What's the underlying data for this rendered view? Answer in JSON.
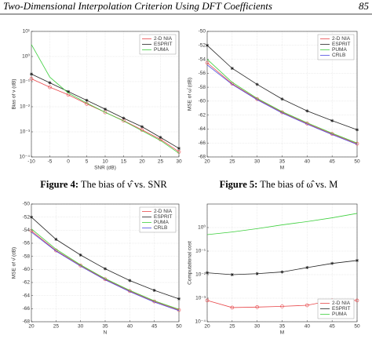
{
  "header": {
    "title": "Two-Dimensional Interpolation Criterion Using DFT Coefficients",
    "page": "85"
  },
  "captions": [
    {
      "label": "Figure 4:",
      "text": "The bias of ν̂ vs. SNR"
    },
    {
      "label": "Figure 5:",
      "text": "The bias of ω̂ vs. M"
    }
  ],
  "chart_data": [
    {
      "type": "line",
      "xlabel": "SNR (dB)",
      "ylabel": "Bias of ν (dB)",
      "log_y": true,
      "grid": true,
      "legend": "upper right",
      "x": [
        -10,
        -5,
        0,
        5,
        10,
        15,
        20,
        25,
        30
      ],
      "xlim": [
        -10,
        30
      ],
      "xticks": [
        -10,
        -5,
        0,
        5,
        10,
        15,
        20,
        25,
        30
      ],
      "ylim": [
        0.0001,
        10
      ],
      "yticks": [
        {
          "value": 0.0001,
          "label": "10⁻⁴"
        },
        {
          "value": 0.001,
          "label": "10⁻³"
        },
        {
          "value": 0.01,
          "label": "10⁻²"
        },
        {
          "value": 0.1,
          "label": "10⁻¹"
        },
        {
          "value": 1,
          "label": "10⁰"
        },
        {
          "value": 10,
          "label": "10¹"
        }
      ],
      "series": [
        {
          "name": "2-D NIA",
          "color": "#e8474a",
          "marker": "circle",
          "values": [
            0.13,
            0.06,
            0.03,
            0.013,
            0.006,
            0.0028,
            0.0012,
            0.0005,
            0.00016
          ]
        },
        {
          "name": "ESPRIT",
          "color": "#222222",
          "marker": "star",
          "values": [
            0.2,
            0.09,
            0.04,
            0.018,
            0.008,
            0.0035,
            0.0016,
            0.0006,
            0.00022
          ]
        },
        {
          "name": "PUMA",
          "color": "#3ccf3c",
          "marker": "none",
          "values": [
            3,
            0.15,
            0.035,
            0.014,
            0.006,
            0.0027,
            0.0011,
            0.00045,
            0.00014
          ]
        }
      ]
    },
    {
      "type": "line",
      "xlabel": "M",
      "ylabel": "MSE of ω̂ (dB)",
      "log_y": false,
      "grid": true,
      "legend": "upper right",
      "x": [
        20,
        25,
        30,
        35,
        40,
        45,
        50
      ],
      "xlim": [
        20,
        50
      ],
      "xticks": [
        20,
        25,
        30,
        35,
        40,
        45,
        50
      ],
      "ylim": [
        -68,
        -50
      ],
      "yticks": [
        -68,
        -66,
        -64,
        -62,
        -60,
        -58,
        -56,
        -54,
        -52,
        -50
      ],
      "series": [
        {
          "name": "2-D NIA",
          "color": "#e8474a",
          "marker": "circle",
          "values": [
            -54.5,
            -57.5,
            -59.7,
            -61.6,
            -63.2,
            -64.7,
            -66.1
          ]
        },
        {
          "name": "ESPRIT",
          "color": "#222222",
          "marker": "star",
          "values": [
            -52,
            -55.3,
            -57.6,
            -59.7,
            -61.4,
            -62.8,
            -64.1
          ]
        },
        {
          "name": "PUMA",
          "color": "#3ccf3c",
          "marker": "none",
          "values": [
            -54,
            -57.3,
            -59.6,
            -61.5,
            -63.1,
            -64.6,
            -66
          ]
        },
        {
          "name": "CRLB",
          "color": "#4a4ae0",
          "marker": "none",
          "values": [
            -54.8,
            -57.6,
            -59.8,
            -61.7,
            -63.3,
            -64.8,
            -66.2
          ]
        }
      ]
    },
    {
      "type": "line",
      "xlabel": "N",
      "ylabel": "MSE of ν̂ (dB)",
      "log_y": false,
      "grid": true,
      "legend": "upper right",
      "x": [
        20,
        25,
        30,
        35,
        40,
        45,
        50
      ],
      "xlim": [
        20,
        50
      ],
      "xticks": [
        20,
        25,
        30,
        35,
        40,
        45,
        50
      ],
      "ylim": [
        -68,
        -50
      ],
      "yticks": [
        -68,
        -66,
        -64,
        -62,
        -60,
        -58,
        -56,
        -54,
        -52,
        -50
      ],
      "series": [
        {
          "name": "2-D NIA",
          "color": "#e8474a",
          "marker": "circle",
          "values": [
            -54.1,
            -57.1,
            -59.4,
            -61.5,
            -63.3,
            -64.9,
            -66.2
          ]
        },
        {
          "name": "ESPRIT",
          "color": "#222222",
          "marker": "star",
          "values": [
            -52,
            -55.4,
            -57.8,
            -59.9,
            -61.7,
            -63.2,
            -64.5
          ]
        },
        {
          "name": "PUMA",
          "color": "#3ccf3c",
          "marker": "none",
          "values": [
            -53.8,
            -56.9,
            -59.3,
            -61.4,
            -63.2,
            -64.8,
            -66.1
          ]
        },
        {
          "name": "CRLB",
          "color": "#4a4ae0",
          "marker": "none",
          "values": [
            -54.3,
            -57.2,
            -59.5,
            -61.6,
            -63.4,
            -65,
            -66.3
          ]
        }
      ]
    },
    {
      "type": "line",
      "xlabel": "M",
      "ylabel": "Computational cost",
      "log_y": true,
      "grid": true,
      "legend": "lower right",
      "x": [
        20,
        25,
        30,
        35,
        40,
        45,
        50
      ],
      "xlim": [
        20,
        50
      ],
      "xticks": [
        20,
        25,
        30,
        35,
        40,
        45,
        50
      ],
      "ylim": [
        0.0001,
        10
      ],
      "yticks": [
        {
          "value": 0.0001,
          "label": "10⁻⁴"
        },
        {
          "value": 0.001,
          "label": "10⁻³"
        },
        {
          "value": 0.01,
          "label": "10⁻²"
        },
        {
          "value": 0.1,
          "label": "10⁻¹"
        },
        {
          "value": 1,
          "label": "10⁰"
        }
      ],
      "series": [
        {
          "name": "2-D NIA",
          "color": "#e8474a",
          "marker": "circle",
          "values": [
            0.0008,
            0.0004,
            0.00042,
            0.00045,
            0.0005,
            0.0008,
            0.0008
          ]
        },
        {
          "name": "ESPRIT",
          "color": "#222222",
          "marker": "star",
          "values": [
            0.012,
            0.01,
            0.011,
            0.013,
            0.02,
            0.03,
            0.04
          ]
        },
        {
          "name": "PUMA",
          "color": "#3ccf3c",
          "marker": "none",
          "values": [
            0.5,
            0.65,
            0.9,
            1.3,
            1.8,
            2.6,
            4
          ]
        }
      ]
    }
  ]
}
